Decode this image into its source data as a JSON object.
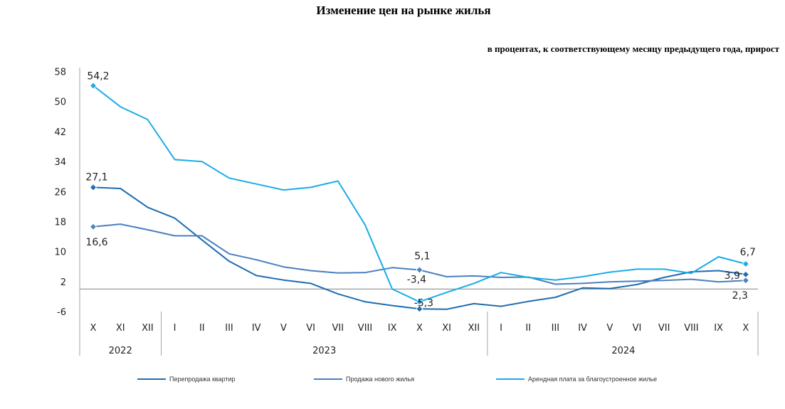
{
  "chart_data": {
    "type": "line",
    "title": "Изменение цен на рынке жилья",
    "subtitle": "в процентах, к соответствующему месяцу предыдущего года, прирост",
    "xlabel": "",
    "ylabel": "",
    "ylim": [
      -6,
      58
    ],
    "yticks": [
      58,
      50,
      42,
      34,
      26,
      18,
      10,
      2,
      -6
    ],
    "ytick_labels": [
      "58",
      "50",
      "42",
      "34",
      "26",
      "18",
      "10",
      "2",
      "-6"
    ],
    "categories": [
      "X",
      "XI",
      "XII",
      "I",
      "II",
      "III",
      "IV",
      "V",
      "VI",
      "VII",
      "VIII",
      "IX",
      "X",
      "XI",
      "XII",
      "I",
      "II",
      "III",
      "IV",
      "V",
      "VI",
      "VII",
      "VIII",
      "IX",
      "X"
    ],
    "year_groups": [
      {
        "label": "2022",
        "start": 0,
        "end": 2
      },
      {
        "label": "2023",
        "start": 3,
        "end": 14
      },
      {
        "label": "2024",
        "start": 15,
        "end": 24
      }
    ],
    "series": [
      {
        "name": "Перепродажа квартир",
        "color": "#1F6CB0",
        "values": [
          27.1,
          26.8,
          21.8,
          18.9,
          13.1,
          7.4,
          3.6,
          2.4,
          1.5,
          -1.3,
          -3.4,
          -4.4,
          -5.3,
          -5.4,
          -3.9,
          -4.6,
          -3.3,
          -2.2,
          0.3,
          0.1,
          1.2,
          3.1,
          4.6,
          4.9,
          3.9
        ],
        "labels": [
          {
            "index": 0,
            "text": "27,1"
          },
          {
            "index": 12,
            "text": "-5,3"
          },
          {
            "index": 24,
            "text": "3,9"
          }
        ]
      },
      {
        "name": "Продажа нового жилья",
        "color": "#4A7FC0",
        "values": [
          16.6,
          17.3,
          15.8,
          14.2,
          14.2,
          9.4,
          7.8,
          5.9,
          4.9,
          4.3,
          4.4,
          5.7,
          5.1,
          3.3,
          3.5,
          3.1,
          3.2,
          1.3,
          1.5,
          1.9,
          2.1,
          2.3,
          2.6,
          1.9,
          2.3
        ],
        "labels": [
          {
            "index": 0,
            "text": "16,6"
          },
          {
            "index": 12,
            "text": "5,1"
          },
          {
            "index": 24,
            "text": "2,3"
          }
        ]
      },
      {
        "name": "Арендная плата за благоустроенное жилье",
        "color": "#19ACE8",
        "values": [
          54.2,
          48.6,
          45.2,
          34.5,
          34.0,
          29.6,
          28.0,
          26.4,
          27.1,
          28.8,
          17.1,
          0.0,
          -3.4,
          -0.9,
          1.5,
          4.4,
          3.1,
          2.4,
          3.3,
          4.5,
          5.3,
          5.3,
          4.2,
          8.6,
          6.7
        ],
        "labels": [
          {
            "index": 0,
            "text": "54,2"
          },
          {
            "index": 12,
            "text": "-3,4"
          },
          {
            "index": 24,
            "text": "6,7"
          }
        ]
      }
    ],
    "legend_placement": "bottom"
  }
}
